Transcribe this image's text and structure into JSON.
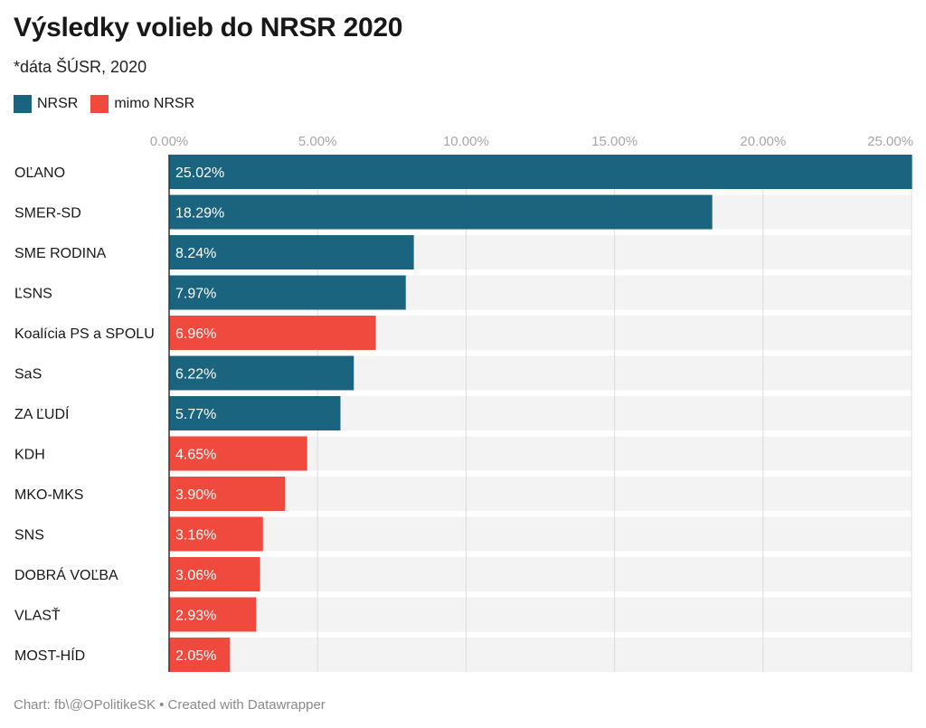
{
  "title": "Výsledky volieb do NRSR 2020",
  "subtitle": "*dáta ŠÚSR, 2020",
  "footer": "Chart: fb\\@OPolitikeSK • Created with Datawrapper",
  "chart_data": {
    "type": "bar",
    "orientation": "horizontal",
    "title": "Výsledky volieb do NRSR 2020",
    "subtitle": "*dáta ŠÚSR, 2020",
    "xlim": [
      0,
      25
    ],
    "ticks": [
      "0.00%",
      "5.00%",
      "10.00%",
      "15.00%",
      "20.00%",
      "25.00%"
    ],
    "tick_values": [
      0,
      5,
      10,
      15,
      20,
      25
    ],
    "grid": true,
    "legend_position": "top-left",
    "legend": [
      {
        "name": "NRSR",
        "color": "#1b6480"
      },
      {
        "name": "mimo NRSR",
        "color": "#f0493e"
      }
    ],
    "background_bar_color": "#f3f3f3",
    "categories": [
      "OĽANO",
      "SMER-SD",
      "SME RODINA",
      "ĽSNS",
      "Koalícia PS a SPOLU",
      "SaS",
      "ZA ĽUDÍ",
      "KDH",
      "MKO-MKS",
      "SNS",
      "DOBRÁ VOĽBA",
      "VLASŤ",
      "MOST-HÍD"
    ],
    "values": [
      25.02,
      18.29,
      8.24,
      7.97,
      6.96,
      6.22,
      5.77,
      4.65,
      3.9,
      3.16,
      3.06,
      2.93,
      2.05
    ],
    "labels": [
      "25.02%",
      "18.29%",
      "8.24%",
      "7.97%",
      "6.96%",
      "6.22%",
      "5.77%",
      "4.65%",
      "3.90%",
      "3.16%",
      "3.06%",
      "2.93%",
      "2.05%"
    ],
    "group": [
      "NRSR",
      "NRSR",
      "NRSR",
      "NRSR",
      "mimo NRSR",
      "NRSR",
      "NRSR",
      "mimo NRSR",
      "mimo NRSR",
      "mimo NRSR",
      "mimo NRSR",
      "mimo NRSR",
      "mimo NRSR"
    ]
  }
}
